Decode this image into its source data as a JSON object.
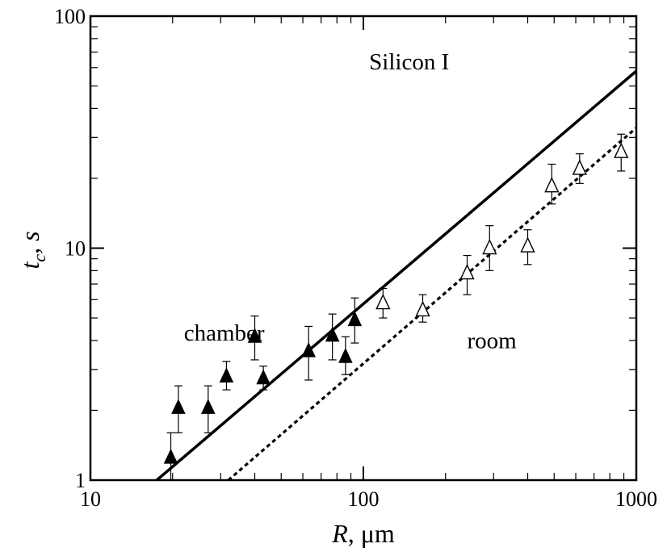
{
  "chart_data": {
    "type": "scatter",
    "x_scale": "log",
    "y_scale": "log",
    "xlim": [
      10,
      1000
    ],
    "ylim": [
      1,
      100
    ],
    "grid": false,
    "xlabel": {
      "main": "R",
      "unit": ", μm"
    },
    "ylabel": {
      "main": "t",
      "sub": "c",
      "unit": ", s"
    },
    "x_ticks": [
      {
        "value": 10,
        "label": "10"
      },
      {
        "value": 100,
        "label": "100"
      },
      {
        "value": 1000,
        "label": "1000"
      }
    ],
    "y_ticks": [
      {
        "value": 1,
        "label": "1"
      },
      {
        "value": 10,
        "label": "10"
      },
      {
        "value": 100,
        "label": "100"
      }
    ],
    "annotations": [
      {
        "text": "Silicon I",
        "x": 105,
        "y": 59
      },
      {
        "text": "chamber",
        "x": 22,
        "y": 4.0
      },
      {
        "text": "room",
        "x": 240,
        "y": 3.7
      }
    ],
    "series": [
      {
        "marker": "filled-triangle",
        "points": [
          {
            "x": 19.7,
            "y": 1.25,
            "ylow": 1.0,
            "yhigh": 1.6
          },
          {
            "x": 21,
            "y": 2.05,
            "ylow": 1.6,
            "yhigh": 2.55
          },
          {
            "x": 27,
            "y": 2.05,
            "ylow": 1.6,
            "yhigh": 2.55
          },
          {
            "x": 31.5,
            "y": 2.8,
            "ylow": 2.45,
            "yhigh": 3.25
          },
          {
            "x": 40,
            "y": 4.15,
            "ylow": 3.3,
            "yhigh": 5.1
          },
          {
            "x": 43,
            "y": 2.75,
            "ylow": 2.45,
            "yhigh": 3.1
          },
          {
            "x": 63,
            "y": 3.6,
            "ylow": 2.7,
            "yhigh": 4.6
          },
          {
            "x": 77,
            "y": 4.2,
            "ylow": 3.3,
            "yhigh": 5.2
          },
          {
            "x": 86,
            "y": 3.4,
            "ylow": 2.85,
            "yhigh": 4.15
          },
          {
            "x": 93,
            "y": 4.9,
            "ylow": 3.9,
            "yhigh": 6.1
          }
        ]
      },
      {
        "marker": "open-triangle",
        "points": [
          {
            "x": 118,
            "y": 5.8,
            "ylow": 5.0,
            "yhigh": 6.7
          },
          {
            "x": 165,
            "y": 5.4,
            "ylow": 4.8,
            "yhigh": 6.3
          },
          {
            "x": 240,
            "y": 7.8,
            "ylow": 6.3,
            "yhigh": 9.3
          },
          {
            "x": 290,
            "y": 10.0,
            "ylow": 8.0,
            "yhigh": 12.5
          },
          {
            "x": 400,
            "y": 10.2,
            "ylow": 8.5,
            "yhigh": 12.0
          },
          {
            "x": 490,
            "y": 18.5,
            "ylow": 15.5,
            "yhigh": 23.0
          },
          {
            "x": 620,
            "y": 22.0,
            "ylow": 19.0,
            "yhigh": 25.5
          },
          {
            "x": 880,
            "y": 26.0,
            "ylow": 21.5,
            "yhigh": 31.0
          }
        ]
      }
    ],
    "lines": [
      {
        "style": "solid",
        "x1": 17.5,
        "y1": 1.0,
        "x2": 1000,
        "y2": 58
      },
      {
        "style": "dotted",
        "x1": 32,
        "y1": 1.0,
        "x2": 1000,
        "y2": 33
      }
    ]
  }
}
